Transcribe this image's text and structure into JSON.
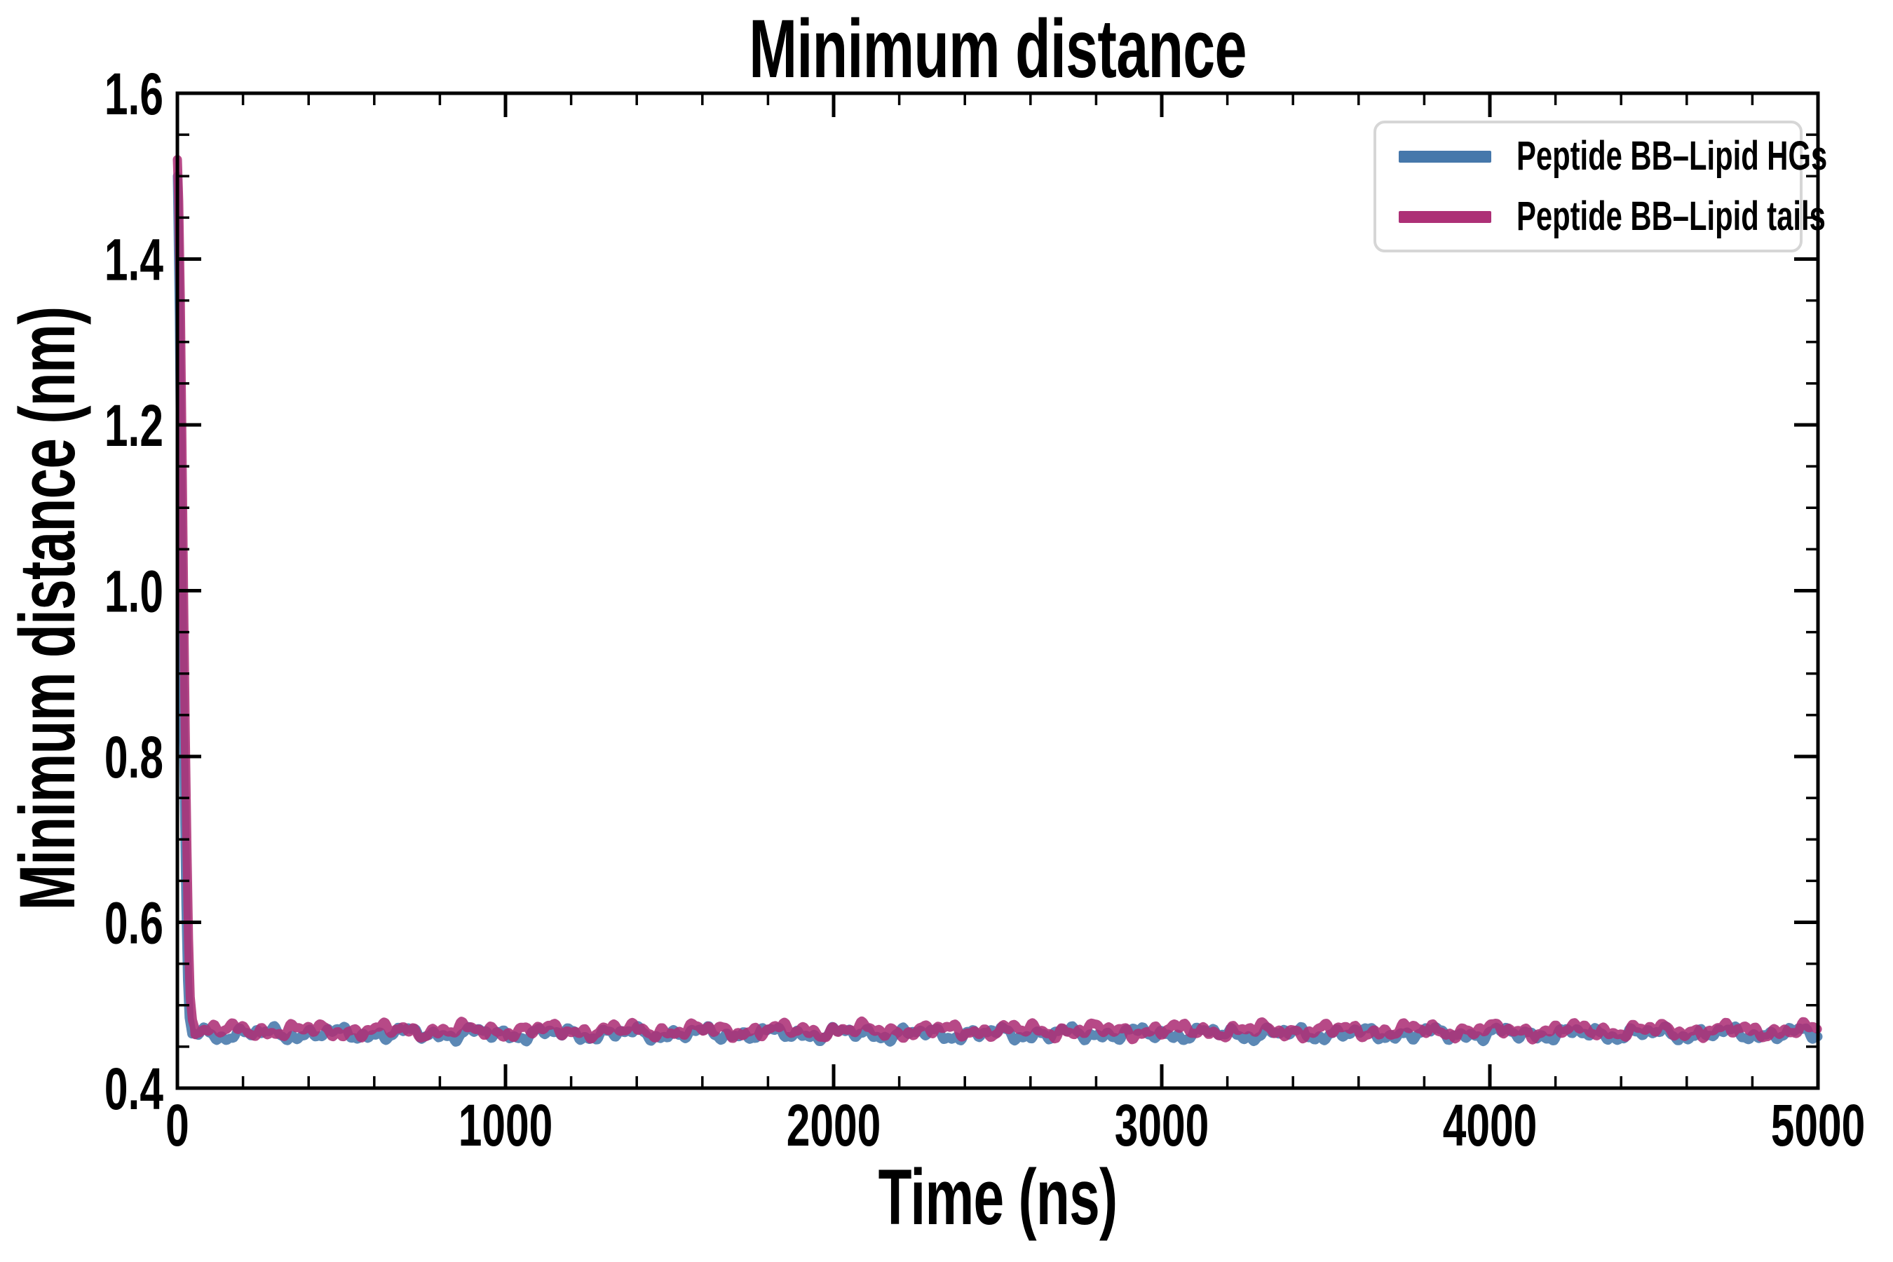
{
  "chart_data": {
    "type": "line",
    "title": "Minimum distance",
    "xlabel": "Time (ns)",
    "ylabel": "Minimum distance (nm)",
    "xlim": [
      0,
      5000
    ],
    "ylim": [
      0.4,
      1.6
    ],
    "x_major_ticks": [
      0,
      1000,
      2000,
      3000,
      4000,
      5000
    ],
    "x_major_tick_labels": [
      "0",
      "1000",
      "2000",
      "3000",
      "4000",
      "5000"
    ],
    "x_minor_tick_step": 200,
    "y_major_ticks": [
      0.4,
      0.6,
      0.8,
      1.0,
      1.2,
      1.4,
      1.6
    ],
    "y_major_tick_labels": [
      "0.4",
      "0.6",
      "0.8",
      "1.0",
      "1.2",
      "1.4",
      "1.6"
    ],
    "y_minor_tick_step": 0.05,
    "grid": false,
    "legend_position": "upper right",
    "series": [
      {
        "name": "Peptide BB–Lipid HGs",
        "color": "#4678ab",
        "opacity": 0.88,
        "description": "starts ~1.50 nm at t=0, drops to baseline within ~45 ns, then flat noisy plateau",
        "spike_points": [
          [
            0,
            1.5
          ],
          [
            6,
            1.33
          ],
          [
            11,
            1.12
          ],
          [
            16,
            0.93
          ],
          [
            21,
            0.76
          ],
          [
            26,
            0.62
          ],
          [
            31,
            0.53
          ],
          [
            36,
            0.485
          ],
          [
            42,
            0.47
          ]
        ],
        "flat": {
          "from": 44,
          "to": 5000,
          "mean": 0.4655,
          "noise_peak": 0.012,
          "amps": [
            0.004,
            0.0035,
            0.003,
            0.002
          ],
          "periods": [
            223,
            101,
            53,
            27
          ],
          "phases": [
            0.7,
            2.3,
            4.1,
            1.9
          ]
        }
      },
      {
        "name": "Peptide BB–Lipid tails",
        "color": "#ad3076",
        "opacity": 0.88,
        "description": "starts ~1.52 nm at t=0, drops to baseline within ~55 ns, then flat noisy plateau slightly above HGs",
        "spike_points": [
          [
            0,
            1.52
          ],
          [
            4,
            1.47
          ],
          [
            9,
            1.35
          ],
          [
            14,
            1.17
          ],
          [
            19,
            0.99
          ],
          [
            24,
            0.83
          ],
          [
            29,
            0.69
          ],
          [
            34,
            0.58
          ],
          [
            39,
            0.51
          ],
          [
            46,
            0.482
          ],
          [
            52,
            0.474
          ]
        ],
        "flat": {
          "from": 54,
          "to": 5000,
          "mean": 0.4695,
          "noise_peak": 0.012,
          "amps": [
            0.004,
            0.0034,
            0.003,
            0.002
          ],
          "periods": [
            241,
            87,
            47,
            29
          ],
          "phases": [
            3.8,
            1.1,
            5.3,
            2.6
          ]
        }
      }
    ],
    "axis_color": "#000000",
    "background_color": "#ffffff",
    "legend_border_color": "#d6d6d6"
  }
}
